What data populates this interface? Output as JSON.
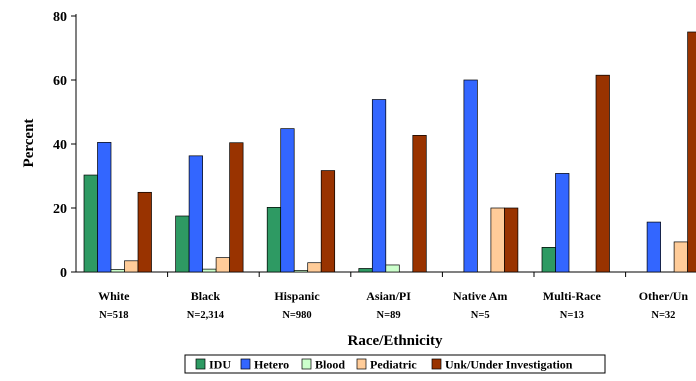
{
  "chart_data": {
    "type": "bar",
    "xlabel": "Race/Ethnicity",
    "ylabel": "Percent",
    "ylim": [
      0,
      80
    ],
    "yticks": [
      0,
      20,
      40,
      60,
      80
    ],
    "grid": false,
    "legend_position": "bottom",
    "categories": [
      "White",
      "Black",
      "Hispanic",
      "Asian/PI",
      "Native Am",
      "Multi-Race",
      "Other/Un"
    ],
    "category_n": [
      "N=518",
      "N=2,314",
      "N=980",
      "N=89",
      "N=5",
      "N=13",
      "N=32"
    ],
    "series": [
      {
        "name": "IDU",
        "color": "#2e9a63",
        "values": [
          30.3,
          17.5,
          20.2,
          1.1,
          0,
          7.7,
          0
        ]
      },
      {
        "name": "Hetero",
        "color": "#3366ff",
        "values": [
          40.5,
          36.3,
          44.8,
          53.9,
          60,
          30.8,
          15.6
        ]
      },
      {
        "name": "Blood",
        "color": "#ccffcc",
        "values": [
          0.8,
          0.9,
          0.5,
          2.2,
          0,
          0,
          0
        ]
      },
      {
        "name": "Pediatric",
        "color": "#ffcc99",
        "values": [
          3.5,
          4.5,
          2.9,
          0,
          20,
          0,
          9.4
        ]
      },
      {
        "name": "Unk/Under Investigation",
        "color": "#993300",
        "values": [
          24.9,
          40.4,
          31.7,
          42.7,
          20,
          61.5,
          75
        ]
      }
    ]
  }
}
